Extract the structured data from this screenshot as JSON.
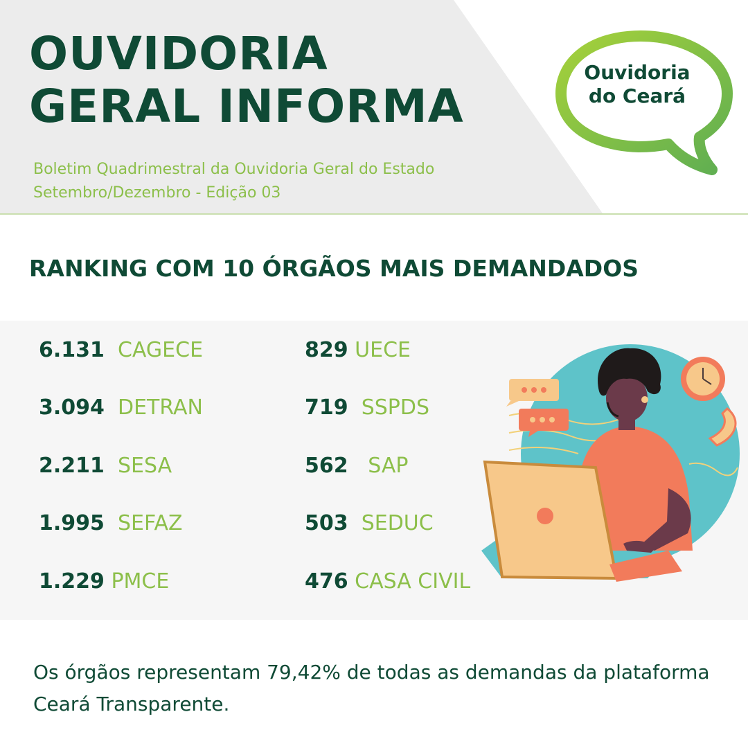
{
  "header": {
    "title_line1": "OUVIDORIA",
    "title_line2": "GERAL INFORMA",
    "subtitle_line1": "Boletim Quadrimestral da Ouvidoria Geral do Estado",
    "subtitle_line2": "Setembro/Dezembro - Edição 03"
  },
  "logo": {
    "line1": "Ouvidoria",
    "line2": "do Ceará"
  },
  "ranking": {
    "title": "RANKING COM 10 ÓRGÃOS MAIS DEMANDADOS",
    "items": [
      {
        "value": "6.131",
        "name": "CAGECE"
      },
      {
        "value": "3.094",
        "name": "DETRAN"
      },
      {
        "value": "2.211",
        "name": "SESA"
      },
      {
        "value": "1.995",
        "name": "SEFAZ"
      },
      {
        "value": "1.229",
        "name": "PMCE"
      },
      {
        "value": "829",
        "name": "UECE"
      },
      {
        "value": "719",
        "name": "SSPDS"
      },
      {
        "value": "562",
        "name": "SAP"
      },
      {
        "value": "503",
        "name": "SEDUC"
      },
      {
        "value": "476",
        "name": "CASA CIVIL"
      }
    ]
  },
  "footer": {
    "text": "Os órgãos representam 79,42% de todas as demandas da plataforma Ceará Transparente."
  },
  "colors": {
    "dark_green": "#0f4a35",
    "light_green": "#8cbf4a",
    "header_gray": "#ececec",
    "panel_gray": "#f6f6f6"
  }
}
